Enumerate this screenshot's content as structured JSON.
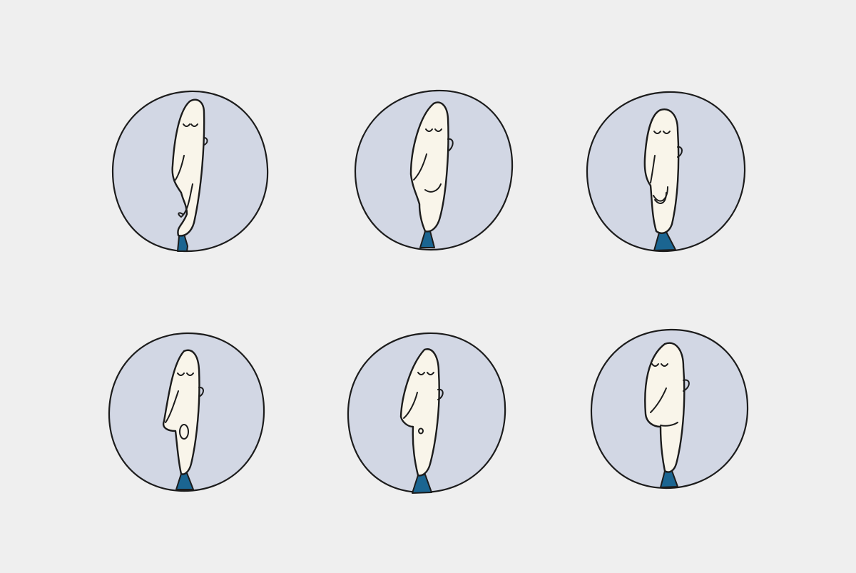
{
  "palette": {
    "background": "#efefef",
    "circle_fill": "#d2d7e4",
    "face_fill": "#f9f5ea",
    "outline": "#1c1c1c",
    "tie": "#1b6591"
  },
  "avatars": [
    {
      "row": 1,
      "col": 1,
      "face": "tall-face-long-chin",
      "mouth": "hook-curve"
    },
    {
      "row": 1,
      "col": 2,
      "face": "tall-face",
      "mouth": "smile"
    },
    {
      "row": 1,
      "col": 3,
      "face": "round-top-face",
      "mouth": "wide-smile"
    },
    {
      "row": 2,
      "col": 1,
      "face": "tall-face",
      "mouth": "open-o"
    },
    {
      "row": 2,
      "col": 2,
      "face": "tall-face",
      "mouth": "small-o"
    },
    {
      "row": 2,
      "col": 3,
      "face": "tall-face",
      "mouth": "flat-line"
    }
  ]
}
